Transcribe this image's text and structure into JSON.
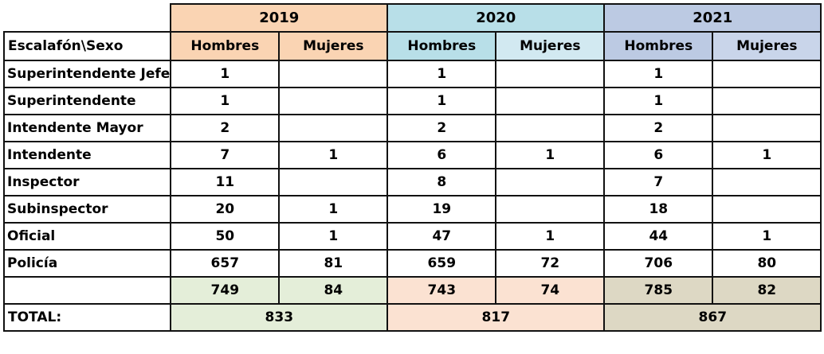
{
  "header": {
    "row_label_header": "Escalafón\\Sexo",
    "years": [
      "2019",
      "2020",
      "2021"
    ],
    "sub_headers": [
      "Hombres",
      "Mujeres",
      "Hombres",
      "Mujeres",
      "Hombres",
      "Mujeres"
    ]
  },
  "rows": [
    {
      "label": "Superintendente Jefe",
      "values": [
        "1",
        "",
        "1",
        "",
        "1",
        ""
      ]
    },
    {
      "label": "Superintendente",
      "values": [
        "1",
        "",
        "1",
        "",
        "1",
        ""
      ]
    },
    {
      "label": "Intendente Mayor",
      "values": [
        "2",
        "",
        "2",
        "",
        "2",
        ""
      ]
    },
    {
      "label": "Intendente",
      "values": [
        "7",
        "1",
        "6",
        "1",
        "6",
        "1"
      ]
    },
    {
      "label": "Inspector",
      "values": [
        "11",
        "",
        "8",
        "",
        "7",
        ""
      ]
    },
    {
      "label": "Subinspector",
      "values": [
        "20",
        "1",
        "19",
        "",
        "18",
        ""
      ]
    },
    {
      "label": "Oficial",
      "values": [
        "50",
        "1",
        "47",
        "1",
        "44",
        "1"
      ]
    },
    {
      "label": "Policía",
      "values": [
        "657",
        "81",
        "659",
        "72",
        "706",
        "80"
      ]
    }
  ],
  "subtotals": [
    "749",
    "84",
    "743",
    "74",
    "785",
    "82"
  ],
  "total": {
    "label": "TOTAL:",
    "values": [
      "833",
      "817",
      "867"
    ]
  },
  "colors": {
    "year_2019": "#fad4b3",
    "year_2020": "#b8dfe8",
    "year_2021": "#bccae3",
    "sub_2020_mujeres": "#d2e9f1",
    "sub_2021_mujeres": "#c9d5ea",
    "subtotal_2019": "#e4eed9",
    "subtotal_2020": "#fbe2d2",
    "subtotal_2021": "#ddd8c4"
  }
}
